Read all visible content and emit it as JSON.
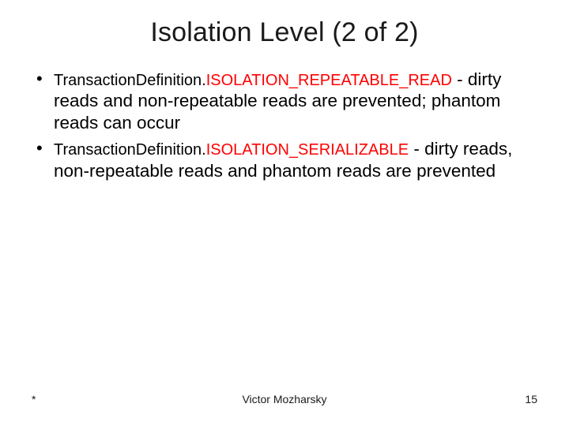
{
  "slide": {
    "title": "Isolation Level (2 of 2)",
    "bullets": [
      {
        "prefix": "TransactionDefinition.",
        "constant": "ISOLATION_REPEATABLE_READ",
        "tail": " - dirty reads and non-repeatable reads are prevented; phantom reads can occur"
      },
      {
        "prefix": "TransactionDefinition.",
        "constant": "ISOLATION_SERIALIZABLE",
        "tail": " - dirty reads, non-repeatable reads and phantom reads are prevented"
      }
    ]
  },
  "footer": {
    "left": "*",
    "center": "Victor Mozharsky",
    "page_number": "15"
  },
  "style": {
    "background_color": "#ffffff",
    "text_color": "#000000",
    "constant_color": "#ff0000",
    "title_fontsize": 34,
    "body_fontsize": 22.5,
    "code_fontsize": 20,
    "footer_fontsize": 14
  }
}
